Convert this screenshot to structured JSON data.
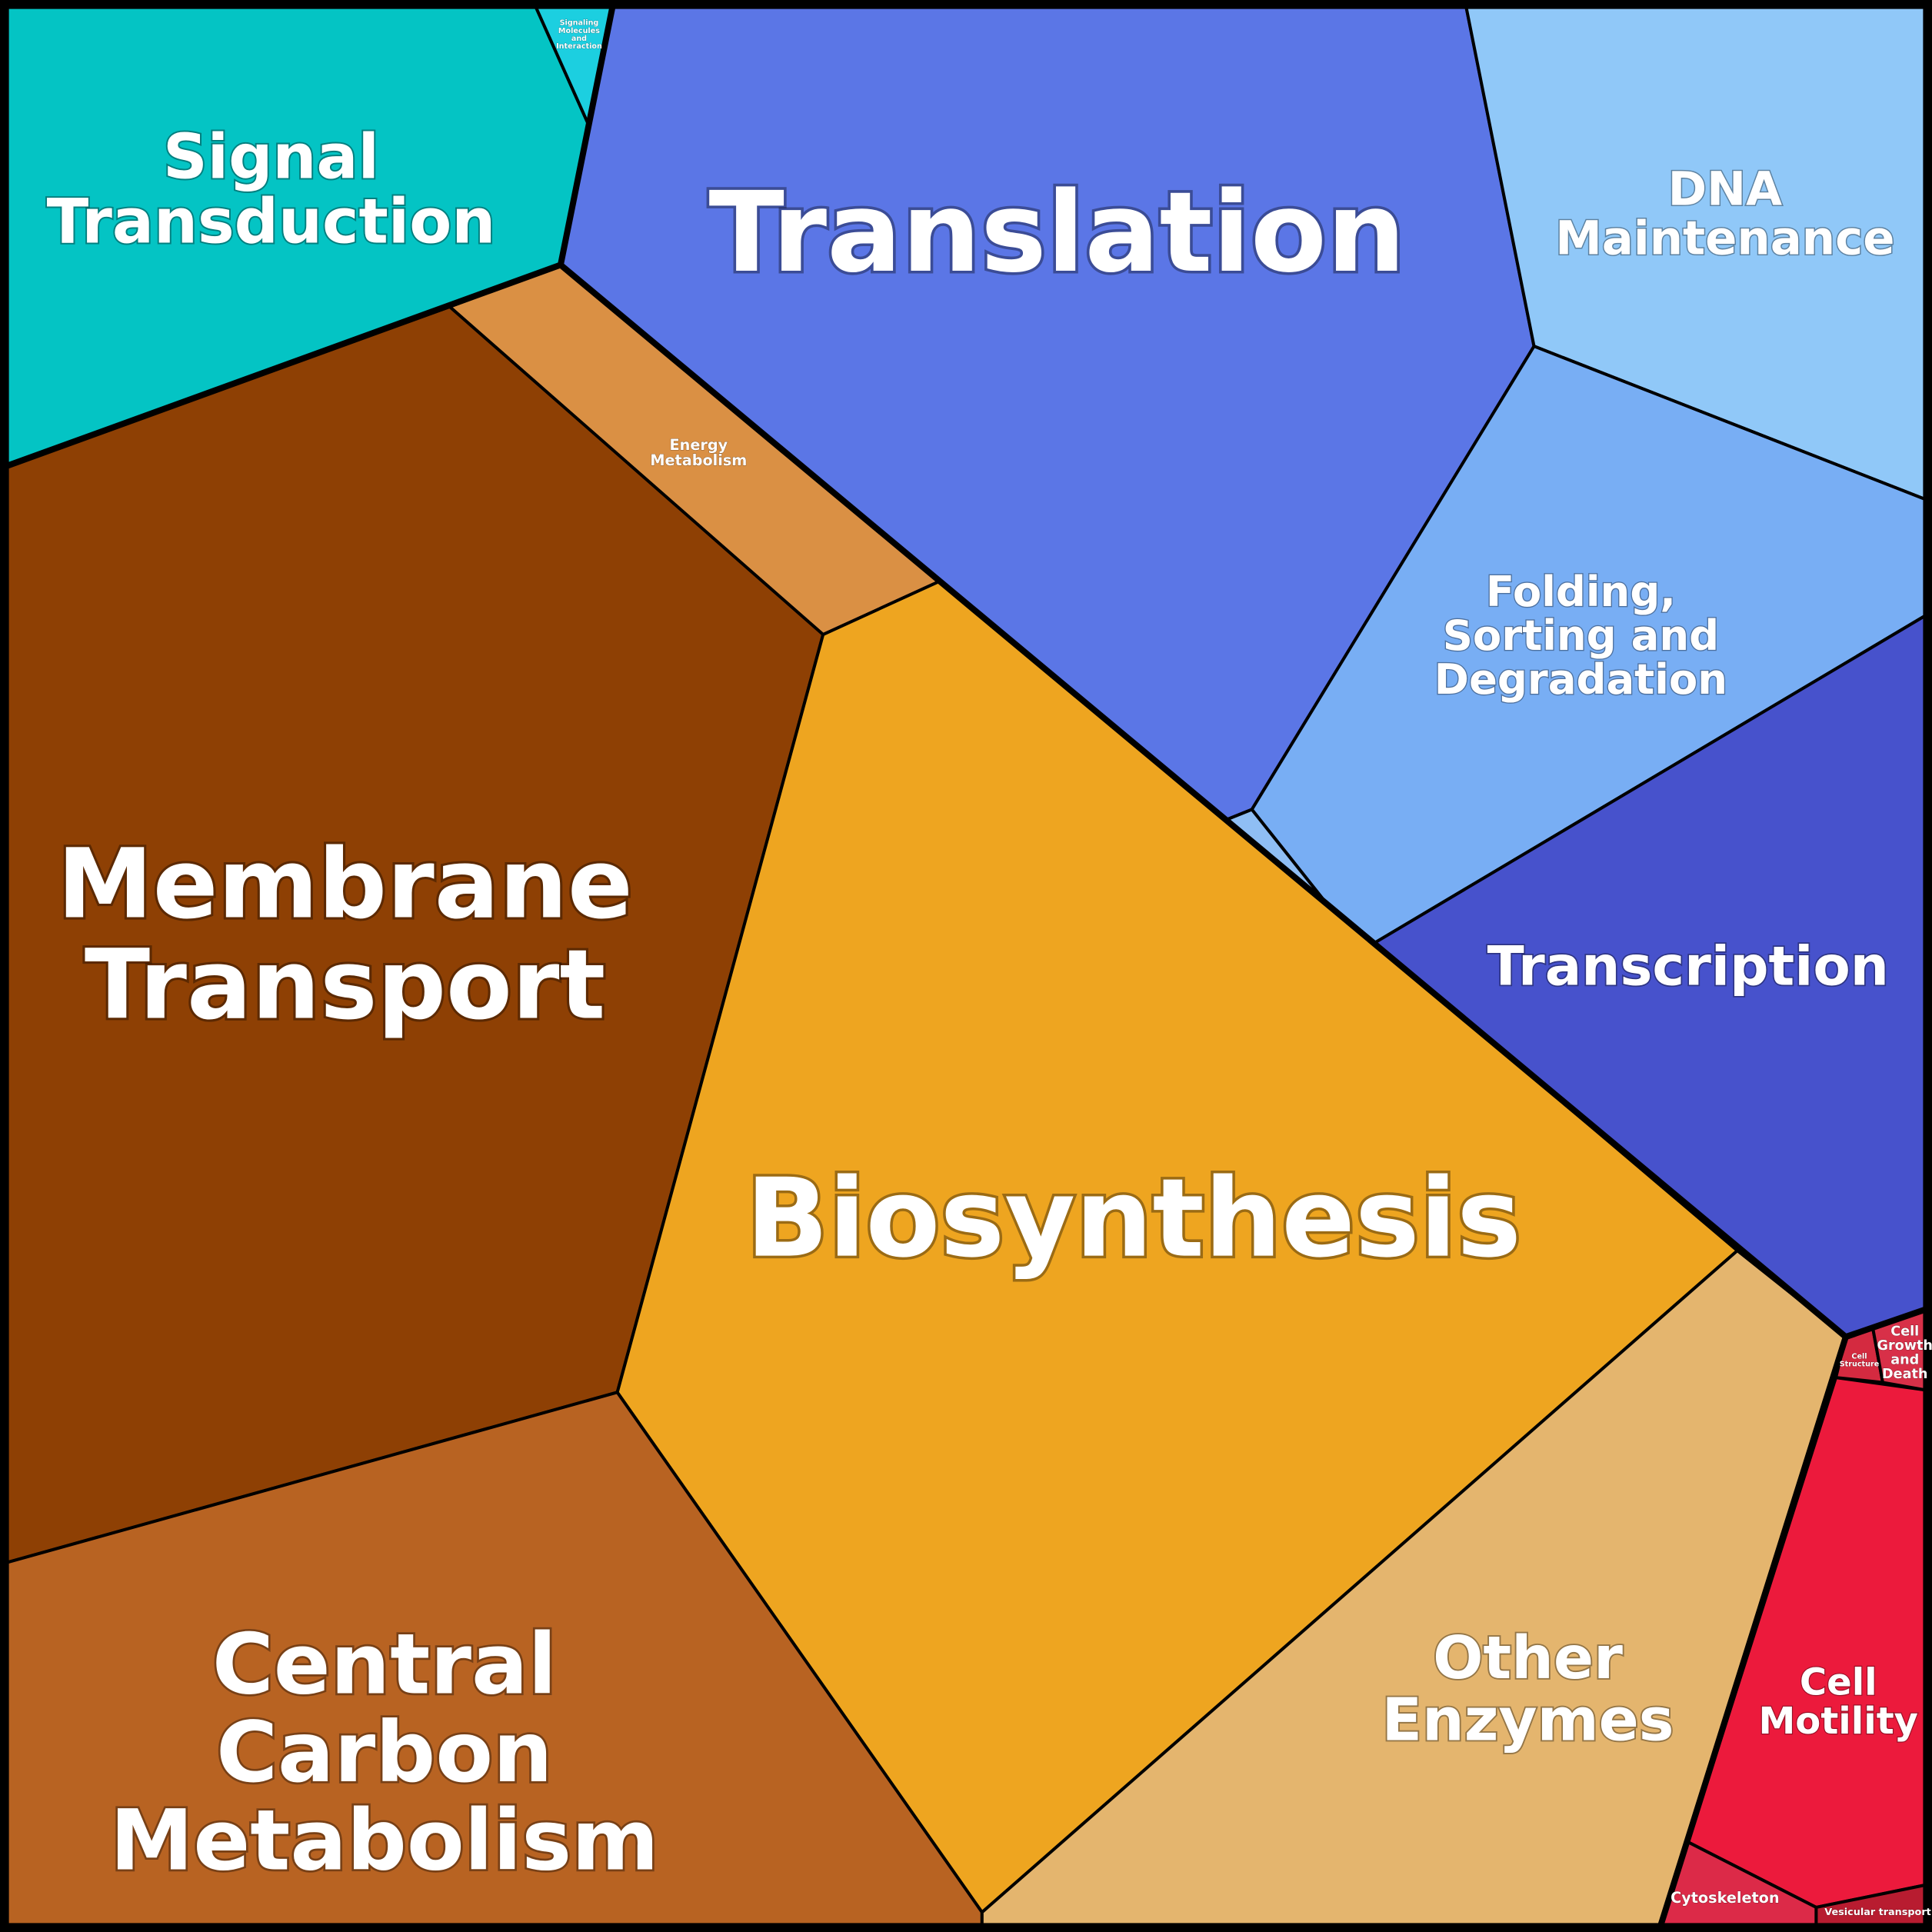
{
  "cells": [
    {
      "label": [
        "Signal",
        "Transduction"
      ]
    },
    {
      "label": [
        "Signaling",
        "Molecules",
        "and",
        "Interaction"
      ]
    },
    {
      "label": [
        "Translation"
      ]
    },
    {
      "label": [
        "DNA",
        "Maintenance"
      ]
    },
    {
      "label": [
        "Folding,",
        "Sorting and",
        "Degradation"
      ]
    },
    {
      "label": [
        "Transcription"
      ]
    },
    {
      "label": [
        "Energy",
        "Metabolism"
      ]
    },
    {
      "label": [
        "Membrane",
        "Transport"
      ]
    },
    {
      "label": [
        "Biosynthesis"
      ]
    },
    {
      "label": [
        "Central",
        "Carbon",
        "Metabolism"
      ]
    },
    {
      "label": [
        "Other",
        "Enzymes"
      ]
    },
    {
      "label": [
        "Cell",
        "Motility"
      ]
    },
    {
      "label": [
        "Cell",
        "Structure"
      ]
    },
    {
      "label": [
        "Cell",
        "Growth",
        "and",
        "Death"
      ]
    },
    {
      "label": [
        "Cytoskeleton"
      ]
    },
    {
      "label": [
        "Vesicular transport"
      ]
    }
  ]
}
